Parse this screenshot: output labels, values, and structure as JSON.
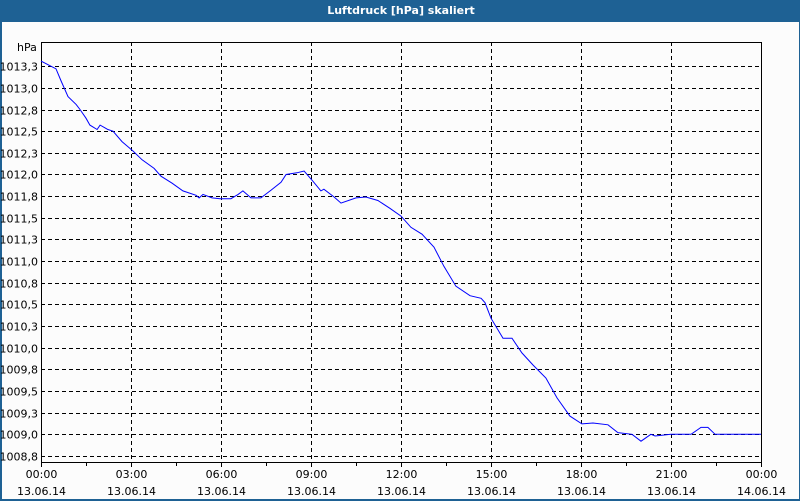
{
  "window": {
    "title": "Luftdruck [hPa] skaliert"
  },
  "chart_data": {
    "type": "line",
    "title": "Luftdruck [hPa] skaliert",
    "ylabel": "hPa",
    "xlabel": "",
    "grid": true,
    "line_color": "#0000ff",
    "ylim": [
      1008.68,
      1013.53
    ],
    "xlim_hours": [
      0,
      24
    ],
    "y_ticks": [
      {
        "value": 1013.25,
        "label": "1013,3"
      },
      {
        "value": 1013.0,
        "label": "1013,0"
      },
      {
        "value": 1012.75,
        "label": "1012,8"
      },
      {
        "value": 1012.5,
        "label": "1012,5"
      },
      {
        "value": 1012.25,
        "label": "1012,3"
      },
      {
        "value": 1012.0,
        "label": "1012,0"
      },
      {
        "value": 1011.75,
        "label": "1011,8"
      },
      {
        "value": 1011.5,
        "label": "1011,5"
      },
      {
        "value": 1011.25,
        "label": "1011,3"
      },
      {
        "value": 1011.0,
        "label": "1011,0"
      },
      {
        "value": 1010.75,
        "label": "1010,8"
      },
      {
        "value": 1010.5,
        "label": "1010,5"
      },
      {
        "value": 1010.25,
        "label": "1010,3"
      },
      {
        "value": 1010.0,
        "label": "1010,0"
      },
      {
        "value": 1009.75,
        "label": "1009,8"
      },
      {
        "value": 1009.5,
        "label": "1009,5"
      },
      {
        "value": 1009.25,
        "label": "1009,3"
      },
      {
        "value": 1009.0,
        "label": "1009,0"
      },
      {
        "value": 1008.75,
        "label": "1008,8"
      }
    ],
    "x_ticks": [
      {
        "hour": 0,
        "time": "00:00",
        "date": "13.06.14"
      },
      {
        "hour": 3,
        "time": "03:00",
        "date": "13.06.14"
      },
      {
        "hour": 6,
        "time": "06:00",
        "date": "13.06.14"
      },
      {
        "hour": 9,
        "time": "09:00",
        "date": "13.06.14"
      },
      {
        "hour": 12,
        "time": "12:00",
        "date": "13.06.14"
      },
      {
        "hour": 15,
        "time": "15:00",
        "date": "13.06.14"
      },
      {
        "hour": 18,
        "time": "18:00",
        "date": "13.06.14"
      },
      {
        "hour": 21,
        "time": "21:00",
        "date": "13.06.14"
      },
      {
        "hour": 24,
        "time": "00:00",
        "date": "14.06.14"
      }
    ],
    "series": [
      {
        "x_hours": [
          0,
          0.33,
          0.5,
          0.67,
          0.9,
          1.17,
          1.3,
          1.5,
          1.63,
          1.87,
          1.97,
          2.23,
          2.4,
          2.7,
          3.07,
          3.37,
          3.77,
          4.0,
          4.37,
          4.73,
          5.17,
          5.27,
          5.4,
          5.7,
          5.97,
          6.33,
          6.57,
          6.73,
          7.0,
          7.33,
          7.67,
          8.0,
          8.17,
          8.53,
          8.77,
          9.07,
          9.33,
          9.43,
          9.77,
          10.0,
          10.5,
          10.83,
          11.23,
          11.63,
          12.0,
          12.33,
          12.7,
          13.1,
          13.43,
          13.83,
          14.3,
          14.67,
          14.8,
          15.0,
          15.4,
          15.7,
          16.03,
          16.4,
          16.83,
          17.2,
          17.63,
          18.03,
          18.4,
          18.9,
          19.23,
          19.7,
          20.0,
          20.33,
          20.47,
          21.0,
          21.67,
          22.0,
          22.23,
          22.47,
          24.0
        ],
        "values": [
          1013.31,
          1013.25,
          1013.22,
          1013.08,
          1012.9,
          1012.81,
          1012.75,
          1012.65,
          1012.57,
          1012.52,
          1012.57,
          1012.52,
          1012.5,
          1012.38,
          1012.27,
          1012.17,
          1012.07,
          1011.98,
          1011.9,
          1011.81,
          1011.76,
          1011.73,
          1011.77,
          1011.73,
          1011.72,
          1011.72,
          1011.77,
          1011.81,
          1011.73,
          1011.73,
          1011.82,
          1011.91,
          1012.0,
          1012.02,
          1012.04,
          1011.92,
          1011.81,
          1011.83,
          1011.74,
          1011.67,
          1011.73,
          1011.74,
          1011.7,
          1011.61,
          1011.52,
          1011.39,
          1011.31,
          1011.16,
          1010.94,
          1010.71,
          1010.6,
          1010.57,
          1010.52,
          1010.34,
          1010.11,
          1010.11,
          1009.94,
          1009.8,
          1009.65,
          1009.42,
          1009.21,
          1009.12,
          1009.13,
          1009.11,
          1009.02,
          1009.0,
          1008.92,
          1009.0,
          1008.98,
          1009.0,
          1009.0,
          1009.08,
          1009.08,
          1009.0,
          1009.0
        ]
      }
    ]
  }
}
